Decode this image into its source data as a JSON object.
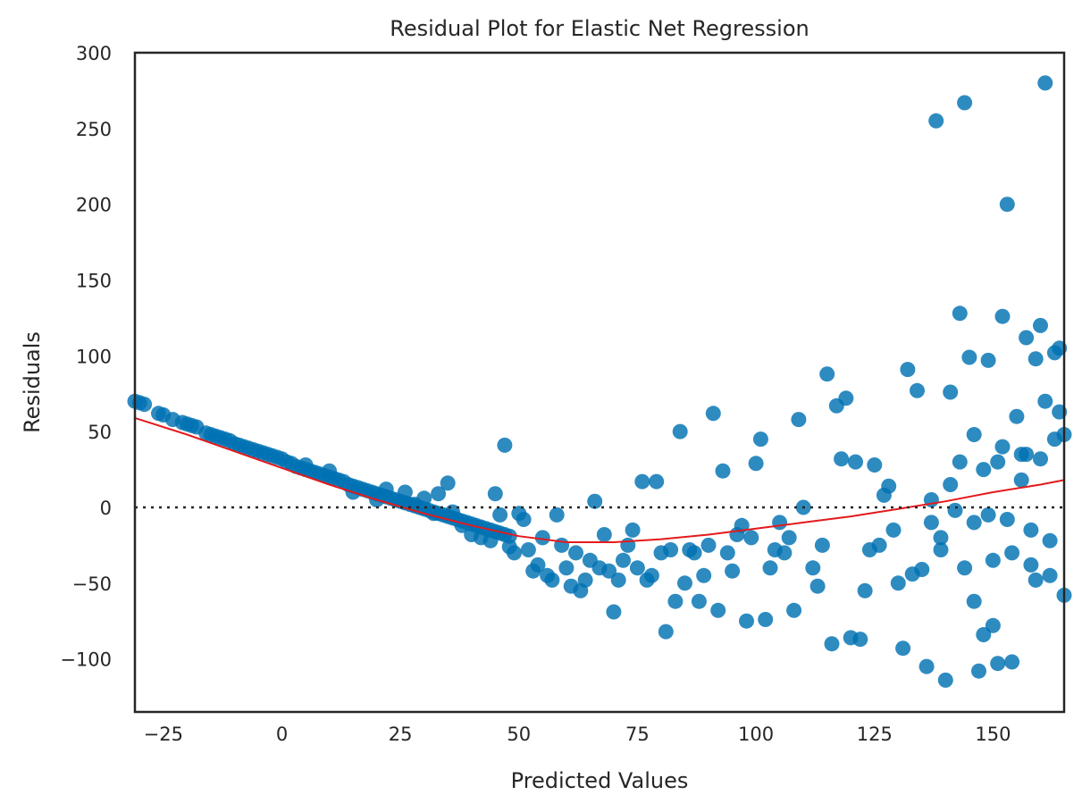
{
  "chart_data": {
    "type": "scatter",
    "title": "Residual Plot for Elastic Net Regression",
    "xlabel": "Predicted Values",
    "ylabel": "Residuals",
    "xlim": [
      -31,
      165
    ],
    "ylim": [
      -135,
      300
    ],
    "xticks": [
      -25,
      0,
      25,
      50,
      75,
      100,
      125,
      150
    ],
    "yticks": [
      -100,
      -50,
      0,
      50,
      100,
      150,
      200,
      250,
      300
    ],
    "grid": false,
    "legend": "none",
    "point_color": "#0072B2",
    "trend_color": "#e41a1c",
    "reference_line": {
      "y": 0,
      "style": "dotted",
      "color": "#262626"
    },
    "series": [
      {
        "values": [
          [
            -31,
            70
          ],
          [
            -30,
            69
          ],
          [
            -29,
            68
          ],
          [
            -26,
            62
          ],
          [
            -25,
            61
          ],
          [
            -23,
            58
          ],
          [
            -21,
            56
          ],
          [
            -20,
            55
          ],
          [
            -19,
            54
          ],
          [
            -18,
            53
          ],
          [
            -16,
            49
          ],
          [
            -15,
            48
          ],
          [
            -14,
            47
          ],
          [
            -13,
            46
          ],
          [
            -12,
            45
          ],
          [
            -11,
            44
          ],
          [
            -10,
            42
          ],
          [
            -9,
            41
          ],
          [
            -8,
            40
          ],
          [
            -7,
            39
          ],
          [
            -6,
            38
          ],
          [
            -5,
            37
          ],
          [
            -4,
            36
          ],
          [
            -3,
            35
          ],
          [
            -2,
            34
          ],
          [
            -1,
            33
          ],
          [
            0,
            32
          ],
          [
            1,
            30
          ],
          [
            2,
            29
          ],
          [
            3,
            27
          ],
          [
            4,
            26
          ],
          [
            5,
            25
          ],
          [
            6,
            24
          ],
          [
            7,
            23
          ],
          [
            8,
            22
          ],
          [
            9,
            21
          ],
          [
            10,
            20
          ],
          [
            11,
            19
          ],
          [
            12,
            18
          ],
          [
            13,
            17
          ],
          [
            14,
            15
          ],
          [
            15,
            14
          ],
          [
            16,
            13
          ],
          [
            17,
            12
          ],
          [
            18,
            11
          ],
          [
            19,
            10
          ],
          [
            20,
            9
          ],
          [
            21,
            8
          ],
          [
            22,
            7
          ],
          [
            23,
            6
          ],
          [
            24,
            5
          ],
          [
            25,
            4
          ],
          [
            26,
            3
          ],
          [
            27,
            2
          ],
          [
            28,
            1
          ],
          [
            29,
            0
          ],
          [
            30,
            -1
          ],
          [
            31,
            -2
          ],
          [
            32,
            -3
          ],
          [
            33,
            -4
          ],
          [
            34,
            -5
          ],
          [
            35,
            -6
          ],
          [
            36,
            -7
          ],
          [
            37,
            -8
          ],
          [
            38,
            -9
          ],
          [
            39,
            -10
          ],
          [
            40,
            -11
          ],
          [
            41,
            -12
          ],
          [
            42,
            -13
          ],
          [
            43,
            -14
          ],
          [
            44,
            -15
          ],
          [
            45,
            -16
          ],
          [
            46,
            -17
          ],
          [
            47,
            -18
          ],
          [
            48,
            -19
          ],
          [
            5,
            28
          ],
          [
            10,
            24
          ],
          [
            15,
            10
          ],
          [
            20,
            5
          ],
          [
            22,
            12
          ],
          [
            26,
            10
          ],
          [
            28,
            2
          ],
          [
            30,
            6
          ],
          [
            32,
            -4
          ],
          [
            33,
            9
          ],
          [
            35,
            16
          ],
          [
            36,
            -3
          ],
          [
            38,
            -12
          ],
          [
            40,
            -18
          ],
          [
            42,
            -20
          ],
          [
            44,
            -22
          ],
          [
            45,
            9
          ],
          [
            46,
            -5
          ],
          [
            47,
            41
          ],
          [
            48,
            -26
          ],
          [
            49,
            -30
          ],
          [
            50,
            -4
          ],
          [
            51,
            -8
          ],
          [
            52,
            -28
          ],
          [
            53,
            -42
          ],
          [
            54,
            -38
          ],
          [
            55,
            -20
          ],
          [
            56,
            -45
          ],
          [
            57,
            -48
          ],
          [
            58,
            -5
          ],
          [
            59,
            -25
          ],
          [
            60,
            -40
          ],
          [
            61,
            -52
          ],
          [
            62,
            -30
          ],
          [
            63,
            -55
          ],
          [
            64,
            -48
          ],
          [
            65,
            -35
          ],
          [
            66,
            4
          ],
          [
            67,
            -40
          ],
          [
            68,
            -18
          ],
          [
            69,
            -42
          ],
          [
            70,
            -69
          ],
          [
            71,
            -48
          ],
          [
            72,
            -35
          ],
          [
            73,
            -25
          ],
          [
            74,
            -15
          ],
          [
            75,
            -40
          ],
          [
            76,
            17
          ],
          [
            77,
            -48
          ],
          [
            78,
            -45
          ],
          [
            79,
            17
          ],
          [
            80,
            -30
          ],
          [
            81,
            -82
          ],
          [
            82,
            -28
          ],
          [
            83,
            -62
          ],
          [
            84,
            50
          ],
          [
            85,
            -50
          ],
          [
            86,
            -28
          ],
          [
            87,
            -30
          ],
          [
            88,
            -62
          ],
          [
            89,
            -45
          ],
          [
            90,
            -25
          ],
          [
            91,
            62
          ],
          [
            92,
            -68
          ],
          [
            93,
            24
          ],
          [
            94,
            -30
          ],
          [
            95,
            -42
          ],
          [
            96,
            -18
          ],
          [
            97,
            -12
          ],
          [
            98,
            -75
          ],
          [
            99,
            -20
          ],
          [
            100,
            29
          ],
          [
            101,
            45
          ],
          [
            102,
            -74
          ],
          [
            103,
            -40
          ],
          [
            104,
            -28
          ],
          [
            105,
            -10
          ],
          [
            106,
            -30
          ],
          [
            107,
            -20
          ],
          [
            108,
            -68
          ],
          [
            109,
            58
          ],
          [
            110,
            0
          ],
          [
            112,
            -40
          ],
          [
            113,
            -52
          ],
          [
            114,
            -25
          ],
          [
            115,
            88
          ],
          [
            116,
            -90
          ],
          [
            117,
            67
          ],
          [
            118,
            32
          ],
          [
            119,
            72
          ],
          [
            120,
            -86
          ],
          [
            121,
            30
          ],
          [
            122,
            -87
          ],
          [
            123,
            -55
          ],
          [
            124,
            -28
          ],
          [
            125,
            28
          ],
          [
            126,
            -25
          ],
          [
            127,
            8
          ],
          [
            128,
            14
          ],
          [
            129,
            -15
          ],
          [
            130,
            -50
          ],
          [
            131,
            -93
          ],
          [
            132,
            91
          ],
          [
            133,
            -44
          ],
          [
            134,
            77
          ],
          [
            135,
            -41
          ],
          [
            136,
            -105
          ],
          [
            137,
            -10
          ],
          [
            138,
            255
          ],
          [
            139,
            -28
          ],
          [
            140,
            -114
          ],
          [
            141,
            76
          ],
          [
            142,
            -2
          ],
          [
            143,
            128
          ],
          [
            144,
            267
          ],
          [
            145,
            99
          ],
          [
            146,
            -62
          ],
          [
            147,
            -108
          ],
          [
            148,
            -84
          ],
          [
            149,
            97
          ],
          [
            150,
            -78
          ],
          [
            151,
            -103
          ],
          [
            152,
            126
          ],
          [
            153,
            200
          ],
          [
            154,
            -102
          ],
          [
            155,
            60
          ],
          [
            156,
            35
          ],
          [
            157,
            112
          ],
          [
            158,
            -38
          ],
          [
            159,
            98
          ],
          [
            160,
            120
          ],
          [
            161,
            280
          ],
          [
            162,
            -45
          ],
          [
            163,
            102
          ],
          [
            164,
            63
          ],
          [
            137,
            5
          ],
          [
            139,
            -20
          ],
          [
            141,
            15
          ],
          [
            143,
            30
          ],
          [
            144,
            -40
          ],
          [
            146,
            -10
          ],
          [
            148,
            25
          ],
          [
            150,
            -35
          ],
          [
            152,
            40
          ],
          [
            154,
            -30
          ],
          [
            156,
            18
          ],
          [
            158,
            -15
          ],
          [
            160,
            32
          ],
          [
            162,
            -22
          ],
          [
            164,
            105
          ],
          [
            146,
            48
          ],
          [
            149,
            -5
          ],
          [
            151,
            30
          ],
          [
            153,
            -8
          ],
          [
            157,
            35
          ],
          [
            159,
            -48
          ],
          [
            161,
            70
          ],
          [
            163,
            45
          ],
          [
            165,
            -58
          ],
          [
            165,
            48
          ]
        ]
      }
    ],
    "trend": {
      "x": [
        -31,
        -20,
        -10,
        0,
        10,
        20,
        30,
        40,
        50,
        60,
        70,
        80,
        90,
        100,
        110,
        120,
        130,
        140,
        150,
        160,
        165
      ],
      "y": [
        59,
        48,
        37,
        26,
        15,
        5,
        -4,
        -12,
        -19,
        -23,
        -23,
        -21,
        -18,
        -14,
        -10,
        -6,
        -1,
        4,
        10,
        15,
        18
      ]
    }
  }
}
